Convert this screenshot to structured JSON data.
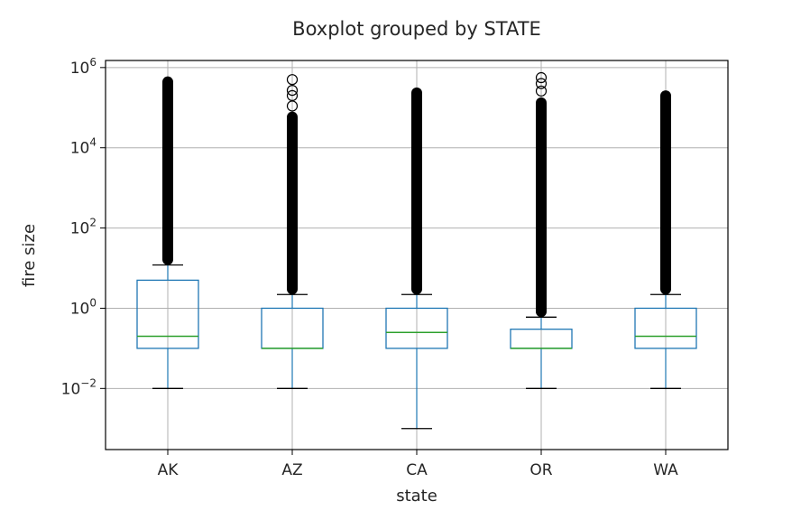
{
  "chart_data": {
    "type": "boxplot",
    "title": "Boxplot grouped by STATE",
    "xlabel": "state",
    "ylabel": "fire size",
    "yscale": "log",
    "ylim": [
      0.0003,
      1500000
    ],
    "grid": true,
    "y_ticks": [
      {
        "value": 0.01,
        "base": "10",
        "exp": "−2"
      },
      {
        "value": 1,
        "base": "10",
        "exp": "0"
      },
      {
        "value": 100,
        "base": "10",
        "exp": "2"
      },
      {
        "value": 10000,
        "base": "10",
        "exp": "4"
      },
      {
        "value": 1000000,
        "base": "10",
        "exp": "6"
      }
    ],
    "categories": [
      "AK",
      "AZ",
      "CA",
      "OR",
      "WA"
    ],
    "boxes": [
      {
        "label": "AK",
        "whisker_low": 0.01,
        "q1": 0.1,
        "median": 0.2,
        "q3": 5,
        "whisker_high": 12,
        "flier_min": 12,
        "flier_max": 600000
      },
      {
        "label": "AZ",
        "whisker_low": 0.01,
        "q1": 0.1,
        "median": 0.1,
        "q3": 1,
        "whisker_high": 2.2,
        "flier_min": 2.2,
        "flier_max": 80000,
        "outliers": [
          110000,
          200000,
          270000,
          500000
        ]
      },
      {
        "label": "CA",
        "whisker_low": 0.001,
        "q1": 0.1,
        "median": 0.25,
        "q3": 1,
        "whisker_high": 2.2,
        "flier_min": 2.2,
        "flier_max": 320000
      },
      {
        "label": "OR",
        "whisker_low": 0.01,
        "q1": 0.1,
        "median": 0.1,
        "q3": 0.3,
        "whisker_high": 0.6,
        "flier_min": 0.6,
        "flier_max": 180000,
        "outliers": [
          260000,
          400000,
          560000
        ]
      },
      {
        "label": "WA",
        "whisker_low": 0.01,
        "q1": 0.1,
        "median": 0.2,
        "q3": 1,
        "whisker_high": 2.2,
        "flier_min": 2.2,
        "flier_max": 270000
      }
    ],
    "colors": {
      "box": "#1f77b4",
      "median": "#2ca02c",
      "whisker": "#1f77b4",
      "cap": "#000000",
      "flier": "#000000",
      "grid": "#b0b0b0",
      "axes": "#000000"
    }
  }
}
